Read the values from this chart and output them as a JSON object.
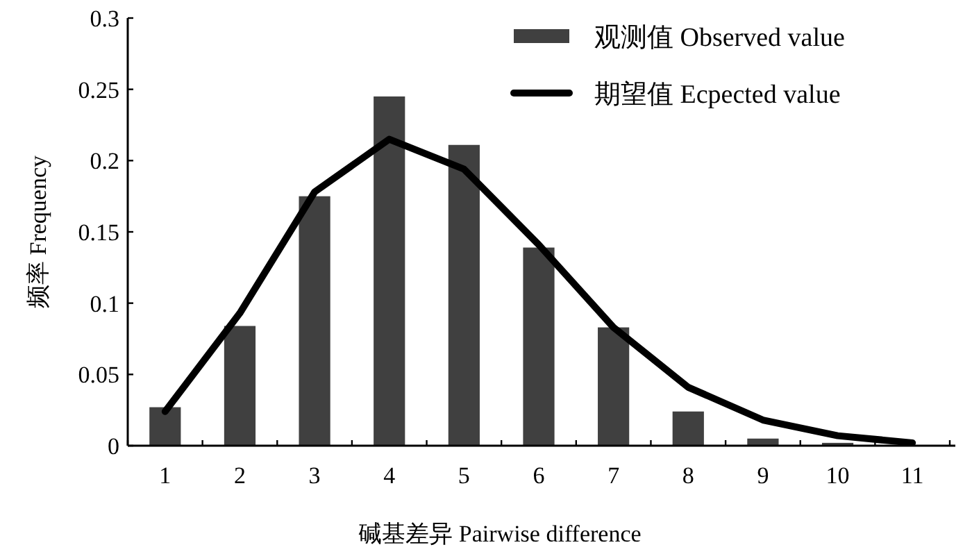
{
  "chart_data": {
    "type": "bar",
    "xlabel": "碱基差异 Pairwise difference",
    "ylabel": "频率 Frequency",
    "categories": [
      "1",
      "2",
      "3",
      "4",
      "5",
      "6",
      "7",
      "8",
      "9",
      "10",
      "11"
    ],
    "series": [
      {
        "name": "观测值 Observed value",
        "color": "#404040",
        "values": [
          0.027,
          0.084,
          0.175,
          0.245,
          0.211,
          0.139,
          0.083,
          0.024,
          0.005,
          0.002,
          0
        ]
      },
      {
        "name": "期望值 Ecpected value",
        "type": "line",
        "color": "#000000",
        "values": [
          0.024,
          0.093,
          0.178,
          0.215,
          0.194,
          0.141,
          0.083,
          0.041,
          0.018,
          0.007,
          0.002
        ]
      }
    ],
    "ylim": [
      0,
      0.3
    ],
    "yticks": [
      0,
      0.05,
      0.1,
      0.15,
      0.2,
      0.25,
      0.3
    ],
    "grid": false,
    "legend": "top right"
  }
}
